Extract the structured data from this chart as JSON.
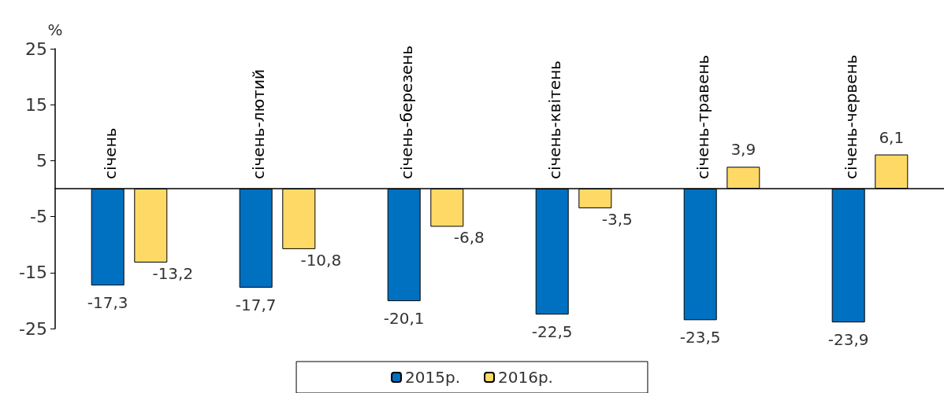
{
  "chart_data": {
    "type": "bar",
    "ylabel": "%",
    "categories": [
      "січень",
      "січень-лютий",
      "січень-березень",
      "січень-квітень",
      "січень-травень",
      "січень-червень"
    ],
    "series": [
      {
        "name": "2015р.",
        "color": "#0070c0",
        "values": [
          -17.3,
          -17.7,
          -20.1,
          -22.5,
          -23.5,
          -23.9
        ],
        "value_labels": [
          "-17,3",
          "-17,7",
          "-20,1",
          "-22,5",
          "-23,5",
          "-23,9"
        ]
      },
      {
        "name": "2016р.",
        "color": "#ffd966",
        "values": [
          -13.2,
          -10.8,
          -6.8,
          -3.5,
          3.9,
          6.1
        ],
        "value_labels": [
          "-13,2",
          "-10,8",
          "-6,8",
          "-3,5",
          "3,9",
          "6,1"
        ]
      }
    ],
    "ylim": [
      -25,
      25
    ],
    "yticks": [
      -25,
      -15,
      -5,
      5,
      15,
      25
    ],
    "grid": false,
    "legend": "bottom"
  }
}
